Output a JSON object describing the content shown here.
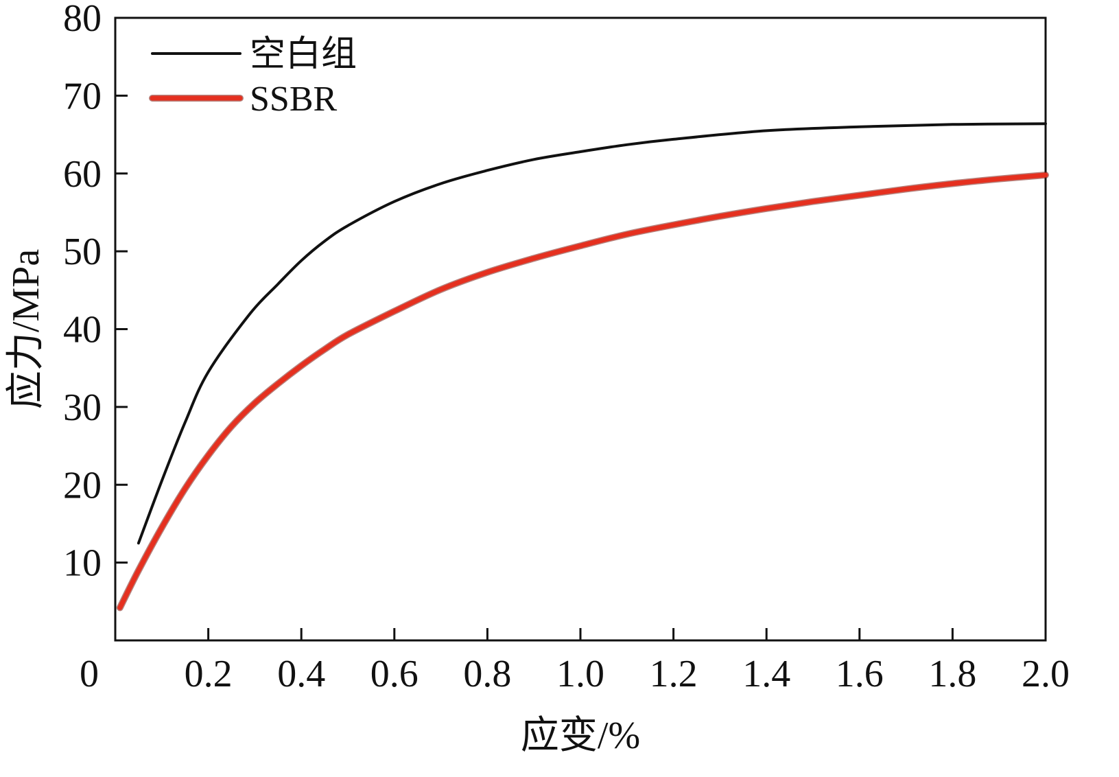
{
  "chart_data": {
    "type": "line",
    "xlabel": "应变/%",
    "ylabel": "应力/MPa",
    "xlim": [
      0,
      2.0
    ],
    "ylim": [
      0,
      80
    ],
    "origin_label": "0",
    "x_ticks": [
      {
        "value": 0.2,
        "label": "0.2"
      },
      {
        "value": 0.4,
        "label": "0.4"
      },
      {
        "value": 0.6,
        "label": "0.6"
      },
      {
        "value": 0.8,
        "label": "0.8"
      },
      {
        "value": 1.0,
        "label": "1.0"
      },
      {
        "value": 1.2,
        "label": "1.2"
      },
      {
        "value": 1.4,
        "label": "1.4"
      },
      {
        "value": 1.6,
        "label": "1.6"
      },
      {
        "value": 1.8,
        "label": "1.8"
      },
      {
        "value": 2.0,
        "label": "2.0"
      }
    ],
    "y_ticks": [
      {
        "value": 10,
        "label": "10"
      },
      {
        "value": 20,
        "label": "20"
      },
      {
        "value": 30,
        "label": "30"
      },
      {
        "value": 40,
        "label": "40"
      },
      {
        "value": 50,
        "label": "50"
      },
      {
        "value": 60,
        "label": "60"
      },
      {
        "value": 70,
        "label": "70"
      },
      {
        "value": 80,
        "label": "80"
      }
    ],
    "grid": false,
    "legend_position": "top-left",
    "series": [
      {
        "name": "空白组",
        "color": "#111111",
        "x": [
          0.05,
          0.1,
          0.15,
          0.2,
          0.29,
          0.35,
          0.4,
          0.45,
          0.5,
          0.6,
          0.7,
          0.8,
          0.9,
          1.0,
          1.1,
          1.2,
          1.4,
          1.6,
          1.8,
          2.0
        ],
        "y": [
          12.5,
          20.5,
          28.0,
          34.5,
          42.0,
          45.8,
          48.8,
          51.3,
          53.3,
          56.4,
          58.7,
          60.4,
          61.8,
          62.8,
          63.7,
          64.4,
          65.5,
          66.0,
          66.3,
          66.4
        ]
      },
      {
        "name": "SSBR",
        "color": "#e5301f",
        "x": [
          0.01,
          0.05,
          0.1,
          0.15,
          0.2,
          0.25,
          0.3,
          0.35,
          0.4,
          0.45,
          0.5,
          0.6,
          0.7,
          0.8,
          0.9,
          1.0,
          1.1,
          1.2,
          1.3,
          1.4,
          1.5,
          1.6,
          1.7,
          1.8,
          1.9,
          2.0
        ],
        "y": [
          4.2,
          9.0,
          14.5,
          19.5,
          23.8,
          27.5,
          30.5,
          33.0,
          35.3,
          37.4,
          39.3,
          42.3,
          45.1,
          47.3,
          49.1,
          50.7,
          52.2,
          53.4,
          54.5,
          55.5,
          56.4,
          57.2,
          58.0,
          58.7,
          59.3,
          59.8
        ]
      }
    ]
  }
}
